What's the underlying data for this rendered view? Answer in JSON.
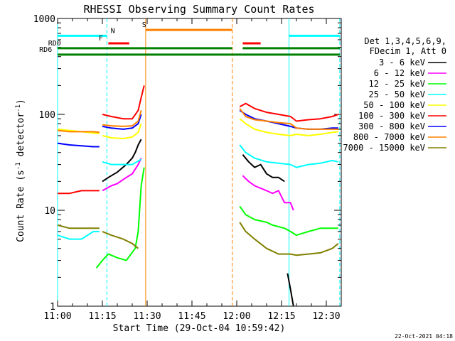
{
  "chart_data": {
    "type": "line",
    "title": "RHESSI Observing Summary Count Rates",
    "xlabel": "Start Time (29-Oct-04 10:59:42)",
    "ylabel_main": "Count Rate (s",
    "ylabel_sup": "-1",
    "ylabel_mid": " detector",
    "ylabel_end": ")",
    "yscale": "log",
    "ylim": [
      1,
      1000
    ],
    "xlim_minutes": [
      0,
      95
    ],
    "x_ticks": [
      {
        "m": 0,
        "label": "11:00"
      },
      {
        "m": 15,
        "label": "11:15"
      },
      {
        "m": 30,
        "label": "11:30"
      },
      {
        "m": 45,
        "label": "11:45"
      },
      {
        "m": 60,
        "label": "12:00"
      },
      {
        "m": 75,
        "label": "12:15"
      },
      {
        "m": 90,
        "label": "12:30"
      }
    ],
    "y_ticks": [
      {
        "v": 1,
        "label": "1"
      },
      {
        "v": 10,
        "label": "10"
      },
      {
        "v": 100,
        "label": "100"
      },
      {
        "v": 1000,
        "label": "1000"
      }
    ],
    "legend_header": [
      "Det 1,3,4,5,6,9,",
      "FDecim 1, Att 0"
    ],
    "series": [
      {
        "name": "3 - 6 keV",
        "color": "#000000",
        "segments": [
          [
            [
              15,
              20
            ],
            [
              17,
              22
            ],
            [
              20,
              25
            ],
            [
              23,
              30
            ],
            [
              25,
              35
            ],
            [
              26,
              40
            ],
            [
              27,
              48
            ],
            [
              28,
              55
            ]
          ],
          [
            [
              62,
              38
            ],
            [
              64,
              32
            ],
            [
              66,
              28
            ],
            [
              68,
              30
            ],
            [
              70,
              24
            ],
            [
              72,
              22
            ],
            [
              74,
              22
            ],
            [
              76,
              20
            ]
          ],
          [
            [
              77,
              2.2
            ],
            [
              78,
              1.5
            ],
            [
              79,
              1.0
            ]
          ]
        ]
      },
      {
        "name": "6 - 12 keV",
        "color": "#ff00ff",
        "segments": [
          [
            [
              15,
              16
            ],
            [
              18,
              18
            ],
            [
              20,
              19
            ],
            [
              23,
              22
            ],
            [
              25,
              24
            ],
            [
              27,
              30
            ],
            [
              28,
              35
            ]
          ],
          [
            [
              62,
              23
            ],
            [
              64,
              20
            ],
            [
              66,
              18
            ],
            [
              68,
              17
            ],
            [
              70,
              16
            ],
            [
              72,
              15
            ],
            [
              74,
              16
            ],
            [
              76,
              12
            ],
            [
              78,
              12
            ],
            [
              79,
              10
            ]
          ]
        ]
      },
      {
        "name": "12 - 25 keV",
        "color": "#00ff00",
        "segments": [
          [
            [
              13,
              2.5
            ],
            [
              15,
              3
            ],
            [
              17,
              3.5
            ],
            [
              20,
              3.2
            ],
            [
              23,
              3
            ],
            [
              26,
              4
            ],
            [
              27,
              6
            ],
            [
              28,
              18
            ],
            [
              29,
              28
            ]
          ],
          [
            [
              61,
              11
            ],
            [
              63,
              9
            ],
            [
              66,
              8
            ],
            [
              70,
              7.5
            ],
            [
              72,
              7
            ],
            [
              76,
              6.5
            ],
            [
              78,
              6
            ],
            [
              80,
              5.5
            ],
            [
              84,
              6
            ],
            [
              88,
              6.5
            ],
            [
              92,
              6.5
            ],
            [
              94,
              6.5
            ]
          ]
        ]
      },
      {
        "name": "25 - 50 keV",
        "color": "#00ffff",
        "segments": [
          [
            [
              0,
              5.5
            ],
            [
              4,
              5
            ],
            [
              8,
              5
            ],
            [
              12,
              6
            ],
            [
              14,
              6
            ]
          ],
          [
            [
              15,
              32
            ],
            [
              18,
              30
            ],
            [
              22,
              30
            ],
            [
              25,
              30
            ],
            [
              28,
              34
            ]
          ],
          [
            [
              61,
              48
            ],
            [
              63,
              40
            ],
            [
              66,
              35
            ],
            [
              70,
              32
            ],
            [
              74,
              31
            ],
            [
              78,
              30
            ],
            [
              80,
              28
            ],
            [
              84,
              30
            ],
            [
              88,
              31
            ],
            [
              92,
              33
            ],
            [
              94,
              32
            ]
          ]
        ]
      },
      {
        "name": "50 - 100 keV",
        "color": "#ffff00",
        "segments": [
          [
            [
              0,
              70
            ],
            [
              4,
              68
            ],
            [
              8,
              66
            ],
            [
              12,
              64
            ],
            [
              14,
              63
            ]
          ],
          [
            [
              15,
              60
            ],
            [
              18,
              57
            ],
            [
              22,
              56
            ],
            [
              25,
              58
            ],
            [
              27,
              65
            ],
            [
              28,
              80
            ]
          ],
          [
            [
              61,
              90
            ],
            [
              63,
              80
            ],
            [
              66,
              70
            ],
            [
              70,
              65
            ],
            [
              74,
              62
            ],
            [
              78,
              60
            ],
            [
              80,
              62
            ],
            [
              84,
              60
            ],
            [
              88,
              62
            ],
            [
              92,
              65
            ],
            [
              94,
              66
            ]
          ]
        ]
      },
      {
        "name": "100 - 300 keV",
        "color": "#ff0000",
        "segments": [
          [
            [
              0,
              15
            ],
            [
              4,
              15
            ],
            [
              8,
              16
            ],
            [
              12,
              16
            ],
            [
              14,
              16
            ]
          ],
          [
            [
              15,
              100
            ],
            [
              18,
              95
            ],
            [
              22,
              90
            ],
            [
              25,
              90
            ],
            [
              27,
              110
            ],
            [
              28,
              150
            ],
            [
              29,
              200
            ]
          ],
          [
            [
              61,
              120
            ],
            [
              63,
              130
            ],
            [
              66,
              115
            ],
            [
              70,
              105
            ],
            [
              74,
              100
            ],
            [
              78,
              95
            ],
            [
              80,
              85
            ],
            [
              84,
              88
            ],
            [
              88,
              90
            ],
            [
              92,
              95
            ],
            [
              94,
              100
            ]
          ]
        ]
      },
      {
        "name": "300 - 800 keV",
        "color": "#0000ff",
        "segments": [
          [
            [
              0,
              50
            ],
            [
              4,
              48
            ],
            [
              8,
              47
            ],
            [
              12,
              46
            ],
            [
              14,
              46
            ]
          ],
          [
            [
              15,
              75
            ],
            [
              18,
              72
            ],
            [
              22,
              70
            ],
            [
              25,
              72
            ],
            [
              27,
              80
            ],
            [
              28,
              100
            ]
          ],
          [
            [
              61,
              110
            ],
            [
              63,
              100
            ],
            [
              66,
              90
            ],
            [
              70,
              85
            ],
            [
              74,
              80
            ],
            [
              78,
              75
            ],
            [
              80,
              72
            ],
            [
              84,
              70
            ],
            [
              88,
              70
            ],
            [
              92,
              72
            ],
            [
              94,
              72
            ]
          ]
        ]
      },
      {
        "name": "800 - 7000 keV",
        "color": "#ff8000",
        "segments": [
          [
            [
              0,
              68
            ],
            [
              4,
              66
            ],
            [
              8,
              66
            ],
            [
              12,
              66
            ],
            [
              14,
              65
            ]
          ],
          [
            [
              15,
              78
            ],
            [
              18,
              76
            ],
            [
              22,
              75
            ],
            [
              25,
              76
            ],
            [
              27,
              85
            ],
            [
              28,
              110
            ]
          ],
          [
            [
              61,
              115
            ],
            [
              63,
              95
            ],
            [
              66,
              88
            ],
            [
              70,
              85
            ],
            [
              74,
              82
            ],
            [
              78,
              80
            ],
            [
              80,
              72
            ],
            [
              84,
              70
            ],
            [
              88,
              70
            ],
            [
              92,
              70
            ],
            [
              94,
              70
            ]
          ]
        ]
      },
      {
        "name": "7000 - 15000 keV",
        "color": "#808000",
        "segments": [
          [
            [
              0,
              7
            ],
            [
              4,
              6.5
            ],
            [
              8,
              6.5
            ],
            [
              12,
              6.5
            ],
            [
              14,
              6.5
            ]
          ],
          [
            [
              15,
              6
            ],
            [
              18,
              5.5
            ],
            [
              22,
              5
            ],
            [
              25,
              4.5
            ],
            [
              27,
              4
            ]
          ],
          [
            [
              61,
              7.5
            ],
            [
              63,
              6
            ],
            [
              66,
              5
            ],
            [
              70,
              4
            ],
            [
              74,
              3.5
            ],
            [
              78,
              3.5
            ],
            [
              80,
              3.4
            ],
            [
              84,
              3.5
            ],
            [
              88,
              3.6
            ],
            [
              92,
              4
            ],
            [
              94,
              4.5
            ]
          ]
        ]
      }
    ],
    "vlines": [
      {
        "m": 0,
        "color": "#00ffff",
        "style": "solid"
      },
      {
        "m": 16.5,
        "color": "#00ffff",
        "style": "dashed"
      },
      {
        "m": 29.5,
        "color": "#ff8000",
        "style": "solid"
      },
      {
        "m": 58.5,
        "color": "#ff8000",
        "style": "dashed"
      },
      {
        "m": 77.5,
        "color": "#00ffff",
        "style": "solid"
      },
      {
        "m": 94.5,
        "color": "#00ffff",
        "style": "dashed"
      }
    ],
    "status_bars": [
      {
        "label": "",
        "color": "#00ffff",
        "y": 660,
        "segments": [
          [
            0,
            16.5
          ],
          [
            77.5,
            94.5
          ]
        ]
      },
      {
        "label": "N",
        "color": "#00ffff",
        "y": 660,
        "label_m": 18.5,
        "segments": []
      },
      {
        "label": "S",
        "color": "#ff8000",
        "y": 760,
        "label_m": 29,
        "segments": [
          [
            29.5,
            58.5
          ]
        ]
      },
      {
        "label": "F",
        "color": "#ff0000",
        "y": 550,
        "label_m": 14.5,
        "segments": [
          [
            17,
            24
          ],
          [
            62,
            68
          ]
        ]
      },
      {
        "label": "RD0",
        "color": "#008000",
        "y": 490,
        "label_m": -1,
        "segments": [
          [
            0,
            58.5
          ],
          [
            62,
            94.5
          ]
        ]
      },
      {
        "label": "RD6",
        "color": "#008000",
        "y": 420,
        "label_m": -4,
        "segments": [
          [
            0,
            58.5
          ],
          [
            58.5,
            62
          ],
          [
            62,
            94.5
          ]
        ]
      }
    ]
  },
  "footer_date": "22-Oct-2021 04:18"
}
